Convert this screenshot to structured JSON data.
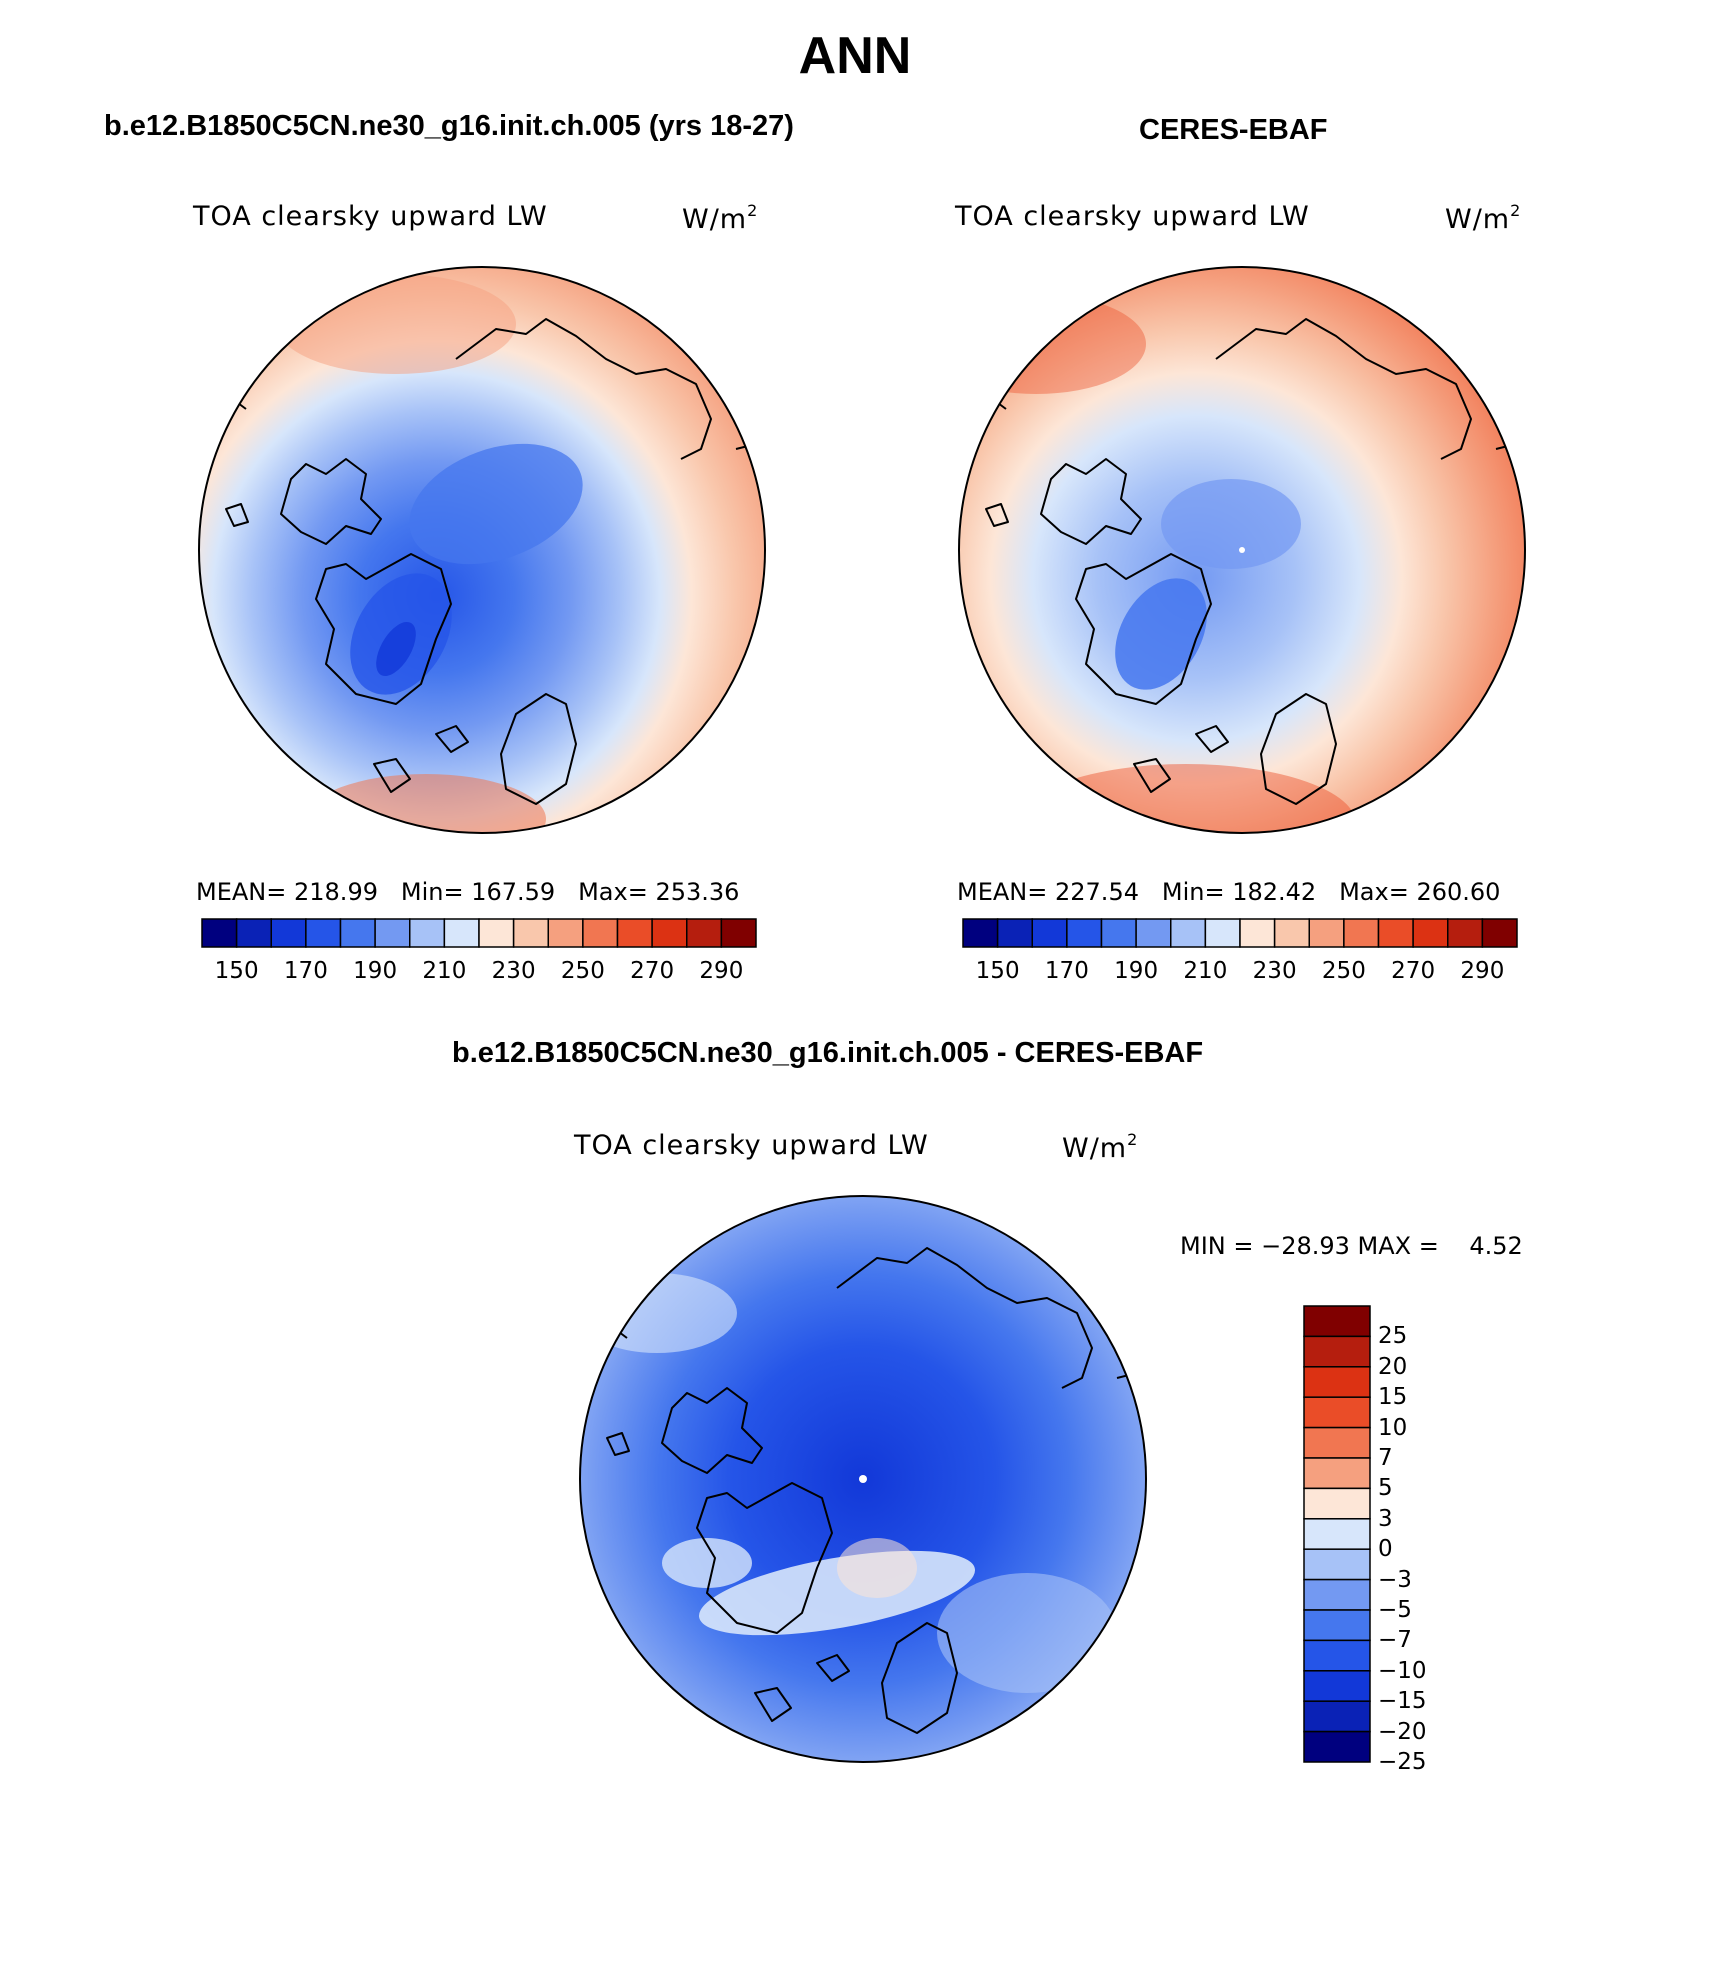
{
  "title": "ANN",
  "colors": {
    "abs_scale": [
      "#00007f",
      "#0a22b6",
      "#1238d8",
      "#2555e8",
      "#4577ee",
      "#7399f2",
      "#a7c2f7",
      "#d7e6fb",
      "#fde6d7",
      "#f9c7ac",
      "#f5a07f",
      "#f17651",
      "#ea4d28",
      "#dc3213",
      "#b51e0e",
      "#800000"
    ],
    "diff_scale": [
      "#800000",
      "#b51e0e",
      "#dc3213",
      "#ea4d28",
      "#f17651",
      "#f5a07f",
      "#fde6d7",
      "#d7e6fb",
      "#a7c2f7",
      "#7399f2",
      "#4577ee",
      "#2555e8",
      "#1238d8",
      "#0a22b6",
      "#00007f"
    ]
  },
  "panels": [
    {
      "title": "b.e12.B1850C5CN.ne30_g16.init.ch.005 (yrs 18-27)",
      "variable": "TOA clearsky upward LW",
      "units": "W/m",
      "units_exp": "2",
      "stats": {
        "mean_label": "MEAN=",
        "mean": "218.99",
        "min_label": "Min=",
        "min": "167.59",
        "max_label": "Max=",
        "max": "253.36"
      },
      "ticks": [
        "150",
        "170",
        "190",
        "210",
        "230",
        "250",
        "270",
        "290"
      ]
    },
    {
      "title": "CERES-EBAF",
      "variable": "TOA clearsky upward LW",
      "units": "W/m",
      "units_exp": "2",
      "stats": {
        "mean_label": "MEAN=",
        "mean": "227.54",
        "min_label": "Min=",
        "min": "182.42",
        "max_label": "Max=",
        "max": "260.60"
      },
      "ticks": [
        "150",
        "170",
        "190",
        "210",
        "230",
        "250",
        "270",
        "290"
      ]
    }
  ],
  "diff": {
    "title": "b.e12.B1850C5CN.ne30_g16.init.ch.005 - CERES-EBAF",
    "variable": "TOA clearsky upward LW",
    "units": "W/m",
    "units_exp": "2",
    "minmax": "MIN = −28.93 MAX =    4.52",
    "ticks": [
      "25",
      "20",
      "15",
      "10",
      "7",
      "5",
      "3",
      "0",
      "−3",
      "−5",
      "−7",
      "−10",
      "−15",
      "−20",
      "−25"
    ]
  }
}
